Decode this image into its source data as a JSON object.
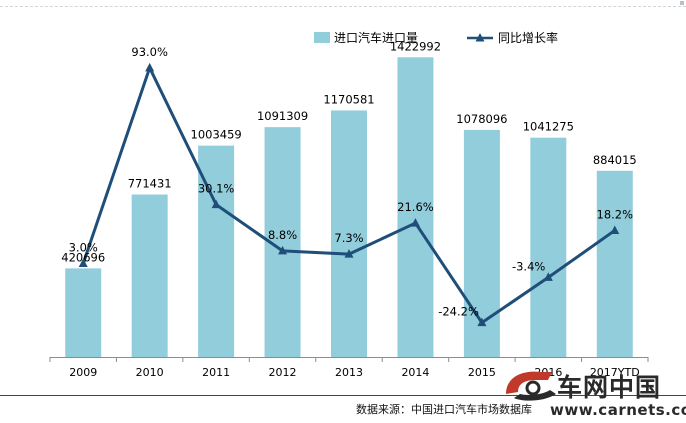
{
  "chart_data": {
    "type": "bar",
    "categories": [
      "2009",
      "2010",
      "2011",
      "2012",
      "2013",
      "2014",
      "2015",
      "2016",
      "2017YTD"
    ],
    "series": [
      {
        "name": "进口汽车进口量",
        "type": "bar",
        "axis": "left",
        "values": [
          420696,
          771431,
          1003459,
          1091309,
          1170581,
          1422992,
          1078096,
          1041275,
          884015
        ],
        "labels": [
          "420696",
          "771431",
          "1003459",
          "1091309",
          "1170581",
          "1422992",
          "1078096",
          "1041275",
          "884015"
        ],
        "color": "#92cddc"
      },
      {
        "name": "同比增长率",
        "type": "line",
        "axis": "right",
        "values": [
          3.0,
          93.0,
          30.1,
          8.8,
          7.3,
          21.6,
          -24.2,
          -3.4,
          18.2
        ],
        "labels": [
          "3.0%",
          "93.0%",
          "30.1%",
          "8.8%",
          "7.3%",
          "21.6%",
          "-24.2%",
          "-3.4%",
          "18.2%"
        ],
        "color": "#1f4e79"
      }
    ],
    "ylim": [
      0,
      1600000
    ],
    "y2lim": [
      -40,
      115
    ],
    "legend": "top-right",
    "grid": false
  },
  "source_text": "数据来源：中国进口汽车市场数据库",
  "logo": {
    "name": "车网中国",
    "url": "www.carnets.com"
  }
}
